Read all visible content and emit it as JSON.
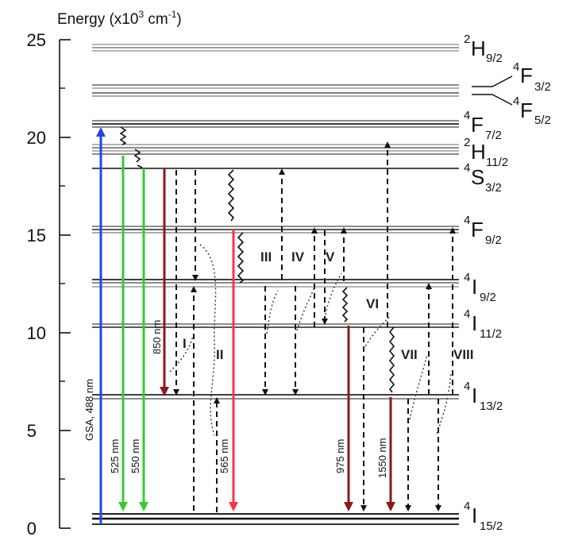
{
  "axis": {
    "title_prefix": "Energy (x10",
    "title_exp": "3",
    "title_unit": " cm",
    "title_unit_exp": "-1",
    "title_close": ")",
    "ticks": [
      {
        "value": 0,
        "label": "0"
      },
      {
        "value": 5,
        "label": "5"
      },
      {
        "value": 10,
        "label": "10"
      },
      {
        "value": 15,
        "label": "15"
      },
      {
        "value": 20,
        "label": "20"
      },
      {
        "value": 25,
        "label": "25"
      }
    ],
    "range": [
      0,
      25
    ]
  },
  "levels": [
    {
      "id": "2H9/2",
      "energy": 24.5,
      "sup": "2",
      "letter": "H",
      "sub": "9/2"
    },
    {
      "id": "4F3/2",
      "energy": 22.6,
      "sup": "4",
      "letter": "F",
      "sub": "3/2"
    },
    {
      "id": "4F5/2",
      "energy": 22.2,
      "sup": "4",
      "letter": "F",
      "sub": "5/2"
    },
    {
      "id": "4F7/2",
      "energy": 20.6,
      "sup": "4",
      "letter": "F",
      "sub": "7/2"
    },
    {
      "id": "2H11/2",
      "energy": 19.3,
      "sup": "2",
      "letter": "H",
      "sub": "11/2"
    },
    {
      "id": "4S3/2",
      "energy": 18.4,
      "sup": "4",
      "letter": "S",
      "sub": "3/2"
    },
    {
      "id": "4F9/2",
      "energy": 15.3,
      "sup": "4",
      "letter": "F",
      "sub": "9/2"
    },
    {
      "id": "4I9/2",
      "energy": 12.6,
      "sup": "4",
      "letter": "I",
      "sub": "9/2"
    },
    {
      "id": "4I11/2",
      "energy": 10.4,
      "sup": "4",
      "letter": "I",
      "sub": "11/2"
    },
    {
      "id": "4I13/2",
      "energy": 6.7,
      "sup": "4",
      "letter": "I",
      "sub": "13/2"
    },
    {
      "id": "4I15/2",
      "energy": 0.6,
      "sup": "4",
      "letter": "I",
      "sub": "15/2"
    }
  ],
  "transitions": [
    {
      "label": "GSA, 488 nm",
      "color": "#2244ee"
    },
    {
      "label": "525 nm",
      "color": "#33cc33"
    },
    {
      "label": "550 nm",
      "color": "#33cc33"
    },
    {
      "label": "850 nm",
      "color": "#8b1a1a"
    },
    {
      "label": "565 nm",
      "color": "#ff3344"
    },
    {
      "label": "975 nm",
      "color": "#8b1a1a"
    },
    {
      "label": "1550 nm",
      "color": "#8b1a1a"
    }
  ],
  "processes": [
    "I",
    "II",
    "III",
    "IV",
    "V",
    "VI",
    "VII",
    "VIII"
  ]
}
